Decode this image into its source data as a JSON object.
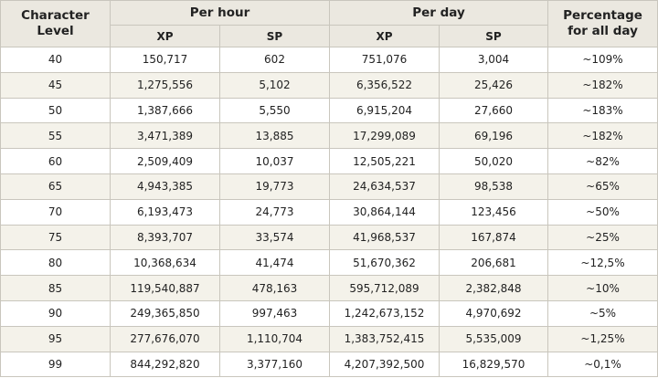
{
  "headers": {
    "level_line1": "Character",
    "level_line2": "Level",
    "per_hour": "Per hour",
    "per_day": "Per day",
    "percentage_line1": "Percentage",
    "percentage_line2": "for all day",
    "xp": "XP",
    "sp": "SP"
  },
  "rows": [
    {
      "level": "40",
      "hour_xp": "150,717",
      "hour_sp": "602",
      "day_xp": "751,076",
      "day_sp": "3,004",
      "percent": "~109%"
    },
    {
      "level": "45",
      "hour_xp": "1,275,556",
      "hour_sp": "5,102",
      "day_xp": "6,356,522",
      "day_sp": "25,426",
      "percent": "~182%"
    },
    {
      "level": "50",
      "hour_xp": "1,387,666",
      "hour_sp": "5,550",
      "day_xp": "6,915,204",
      "day_sp": "27,660",
      "percent": "~183%"
    },
    {
      "level": "55",
      "hour_xp": "3,471,389",
      "hour_sp": "13,885",
      "day_xp": "17,299,089",
      "day_sp": "69,196",
      "percent": "~182%"
    },
    {
      "level": "60",
      "hour_xp": "2,509,409",
      "hour_sp": "10,037",
      "day_xp": "12,505,221",
      "day_sp": "50,020",
      "percent": "~82%"
    },
    {
      "level": "65",
      "hour_xp": "4,943,385",
      "hour_sp": "19,773",
      "day_xp": "24,634,537",
      "day_sp": "98,538",
      "percent": "~65%"
    },
    {
      "level": "70",
      "hour_xp": "6,193,473",
      "hour_sp": "24,773",
      "day_xp": "30,864,144",
      "day_sp": "123,456",
      "percent": "~50%"
    },
    {
      "level": "75",
      "hour_xp": "8,393,707",
      "hour_sp": "33,574",
      "day_xp": "41,968,537",
      "day_sp": "167,874",
      "percent": "~25%"
    },
    {
      "level": "80",
      "hour_xp": "10,368,634",
      "hour_sp": "41,474",
      "day_xp": "51,670,362",
      "day_sp": "206,681",
      "percent": "~12,5%"
    },
    {
      "level": "85",
      "hour_xp": "119,540,887",
      "hour_sp": "478,163",
      "day_xp": "595,712,089",
      "day_sp": "2,382,848",
      "percent": "~10%"
    },
    {
      "level": "90",
      "hour_xp": "249,365,850",
      "hour_sp": "997,463",
      "day_xp": "1,242,673,152",
      "day_sp": "4,970,692",
      "percent": "~5%"
    },
    {
      "level": "95",
      "hour_xp": "277,676,070",
      "hour_sp": "1,110,704",
      "day_xp": "1,383,752,415",
      "day_sp": "5,535,009",
      "percent": "~1,25%"
    },
    {
      "level": "99",
      "hour_xp": "844,292,820",
      "hour_sp": "3,377,160",
      "day_xp": "4,207,392,500",
      "day_sp": "16,829,570",
      "percent": "~0,1%"
    }
  ]
}
